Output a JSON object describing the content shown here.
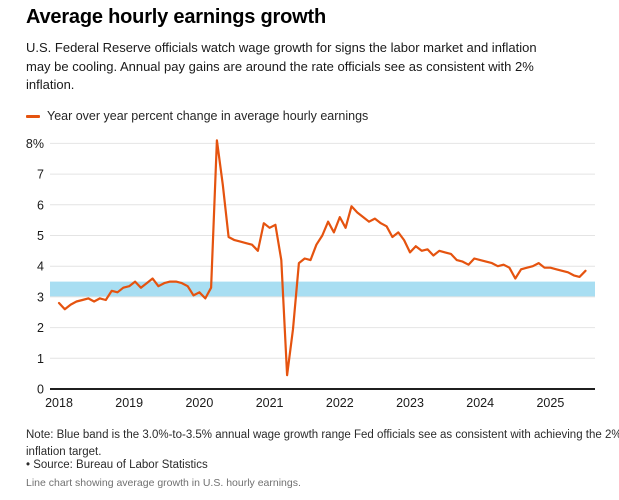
{
  "page": {
    "title": "Average hourly earnings growth",
    "subtitle_lines": [
      "U.S. Federal Reserve officials watch wage growth for signs the labor market and inflation",
      "may be cooling. Annual pay gains are around the rate officials see as consistent with 2%",
      "inflation."
    ],
    "legend_label": "Year over year percent change in average hourly earnings",
    "note_lines": [
      "Note: Blue band is the 3.0%-to-3.5% annual wage growth range Fed officials see as consistent with achieving the 2%",
      "inflation target."
    ],
    "source": "• Source: Bureau of Labor Statistics",
    "caption": "Line chart showing average growth in U.S. hourly earnings."
  },
  "colors": {
    "line": "#e5530f",
    "band": "#a8def2",
    "grid": "#e4e4e4",
    "axis": "#1f1f1f",
    "tick_text": "#1a1a1a"
  },
  "chart_data": {
    "type": "line",
    "title": "Average hourly earnings growth",
    "ylabel": "Year over year percent change in average hourly earnings (%)",
    "xlabel": "",
    "grid": true,
    "legend_position": "top",
    "ylim": [
      0,
      8.3
    ],
    "y_ticks": [
      {
        "value": 0,
        "label": "0"
      },
      {
        "value": 1,
        "label": "1"
      },
      {
        "value": 2,
        "label": "2"
      },
      {
        "value": 3,
        "label": "3"
      },
      {
        "value": 4,
        "label": "4"
      },
      {
        "value": 5,
        "label": "5"
      },
      {
        "value": 6,
        "label": "6"
      },
      {
        "value": 7,
        "label": "7"
      },
      {
        "value": 8,
        "label": "8%"
      }
    ],
    "x_ticks": [
      {
        "label": "2018"
      },
      {
        "label": "2019"
      },
      {
        "label": "2020"
      },
      {
        "label": "2021"
      },
      {
        "label": "2022"
      },
      {
        "label": "2023"
      },
      {
        "label": "2024"
      },
      {
        "label": "2025"
      }
    ],
    "band": {
      "from": 3.0,
      "to": 3.5,
      "meaning": "3.0%-to-3.5% annual wage growth range Fed officials see as consistent with achieving the 2% inflation target"
    },
    "series": [
      {
        "name": "Year over year percent change in average hourly earnings",
        "start": "2018-01",
        "frequency": "monthly",
        "values": [
          2.8,
          2.6,
          2.75,
          2.85,
          2.9,
          2.95,
          2.85,
          2.95,
          2.9,
          3.2,
          3.15,
          3.3,
          3.35,
          3.5,
          3.3,
          3.45,
          3.6,
          3.35,
          3.45,
          3.5,
          3.5,
          3.45,
          3.35,
          3.05,
          3.15,
          2.95,
          3.3,
          8.1,
          6.65,
          4.95,
          4.85,
          4.8,
          4.75,
          4.7,
          4.5,
          5.4,
          5.25,
          5.35,
          4.2,
          0.45,
          1.95,
          4.1,
          4.25,
          4.2,
          4.7,
          5.0,
          5.45,
          5.1,
          5.6,
          5.25,
          5.95,
          5.75,
          5.6,
          5.45,
          5.55,
          5.4,
          5.3,
          4.95,
          5.1,
          4.85,
          4.45,
          4.65,
          4.5,
          4.55,
          4.35,
          4.5,
          4.45,
          4.4,
          4.2,
          4.15,
          4.05,
          4.25,
          4.2,
          4.15,
          4.1,
          4.0,
          4.05,
          3.95,
          3.6,
          3.9,
          3.95,
          4.0,
          4.1,
          3.95,
          3.95,
          3.9,
          3.85,
          3.8,
          3.7,
          3.65,
          3.85
        ]
      }
    ]
  }
}
